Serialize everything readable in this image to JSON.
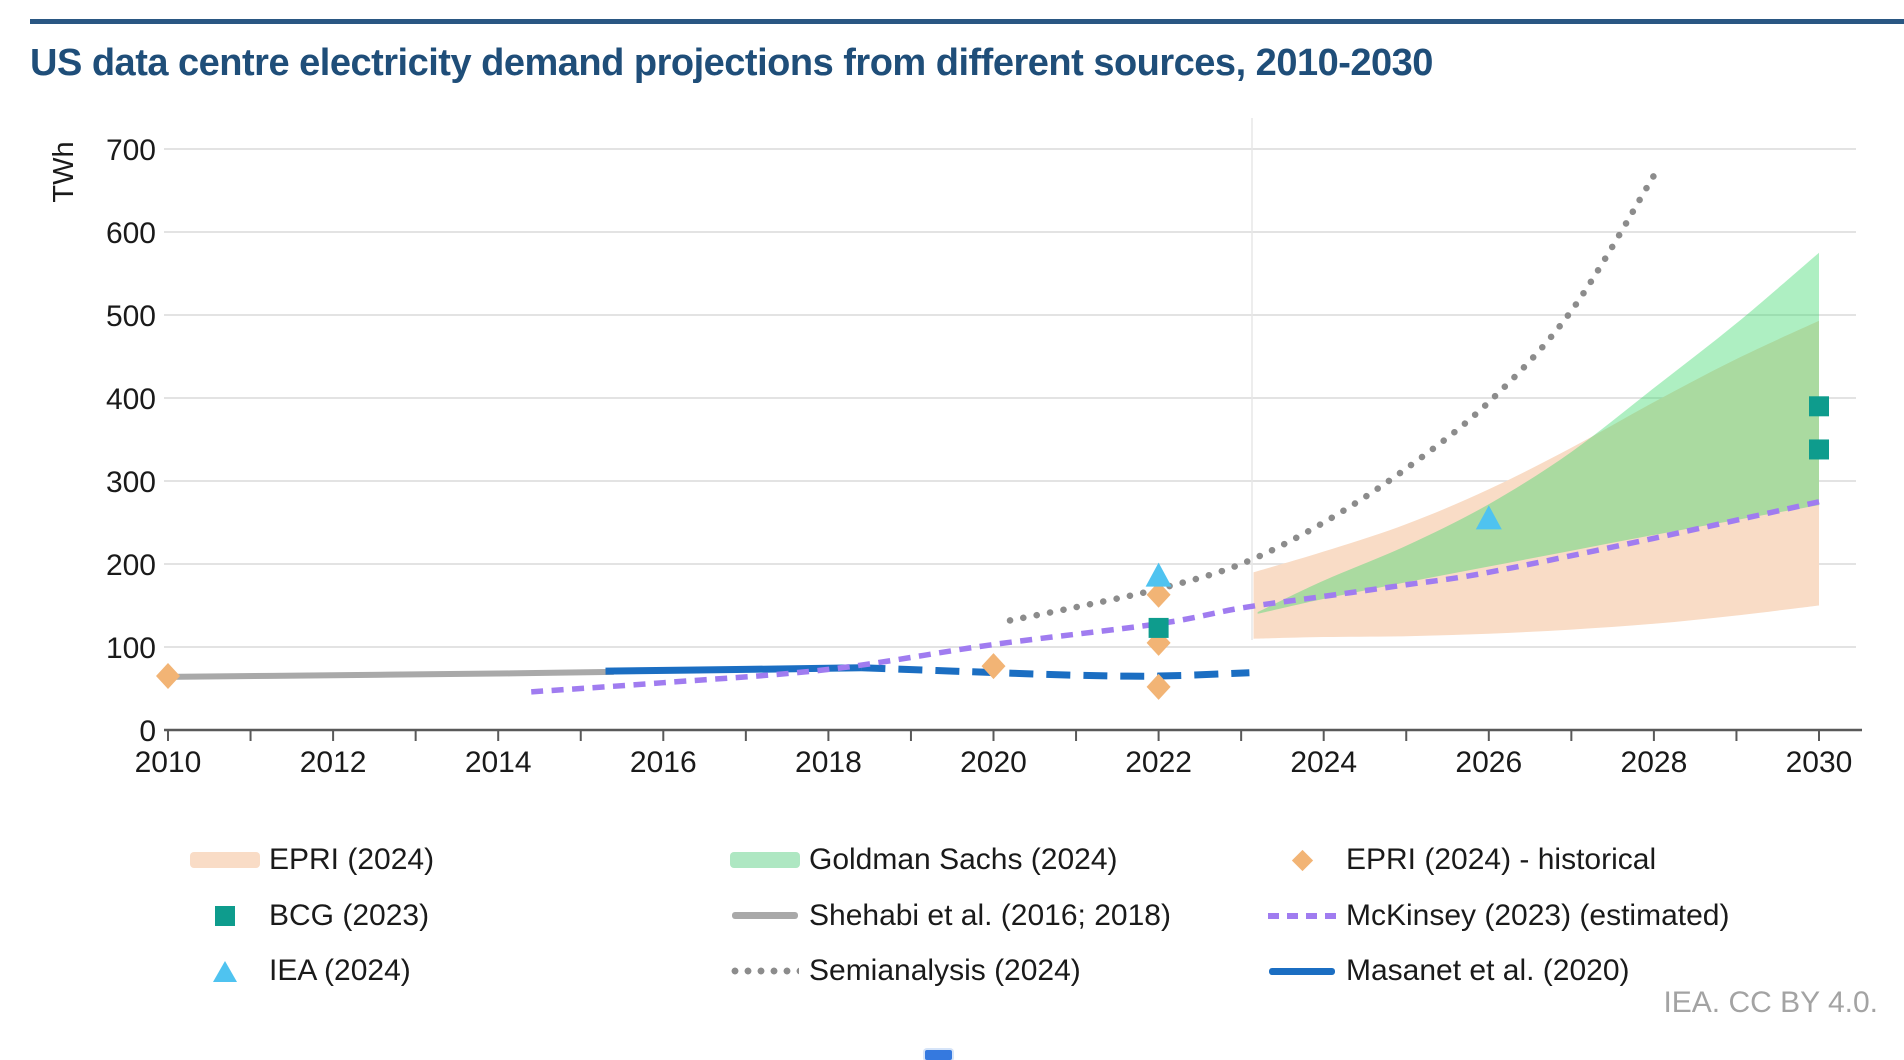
{
  "header": {
    "title": "US data centre electricity demand projections from different sources, 2010-2030",
    "title_color": "#1F4E79",
    "rule_color": "#2A5783"
  },
  "footer": {
    "credit": "IEA. CC BY 4.0."
  },
  "legend": {
    "columns": [
      {
        "items": [
          {
            "label": "EPRI (2024)",
            "swatch": "band",
            "color": "#F9DCC6"
          },
          {
            "label": "BCG (2023)",
            "swatch": "square",
            "color": "#0E9C8D"
          },
          {
            "label": "IEA (2024)",
            "swatch": "triangle",
            "color": "#4FC3F0"
          }
        ]
      },
      {
        "items": [
          {
            "label": "Goldman Sachs (2024)",
            "swatch": "band",
            "color": "#AEE7C2"
          },
          {
            "label": "Shehabi et al. (2016; 2018)",
            "swatch": "line",
            "color": "#A9A9A9"
          },
          {
            "label": "Semianalysis (2024)",
            "swatch": "dotted",
            "color": "#8C8C8C"
          }
        ]
      },
      {
        "items": [
          {
            "label": "EPRI (2024) - historical",
            "swatch": "diamond",
            "color": "#F2B475"
          },
          {
            "label": "McKinsey (2023) (estimated)",
            "swatch": "dashed",
            "color": "#A07CF0"
          },
          {
            "label": "Masanet et al. (2020)",
            "swatch": "solid-line",
            "color": "#1B6EC2"
          }
        ]
      }
    ]
  },
  "chart_data": {
    "type": "line",
    "title": "US data centre electricity demand projections from different sources, 2010-2030",
    "xlabel": "",
    "ylabel": "TWh",
    "ylim": [
      0,
      700
    ],
    "xlim": [
      2010,
      2030.5
    ],
    "grid": "horizontal",
    "legend_position": "bottom",
    "y_ticks": [
      0,
      100,
      200,
      300,
      400,
      500,
      600,
      700
    ],
    "x_ticks": [
      2010,
      2012,
      2014,
      2016,
      2018,
      2020,
      2022,
      2024,
      2026,
      2028,
      2030
    ],
    "axis_color": "#595959",
    "grid_color": "#DADADA",
    "series": [
      {
        "name": "EPRI (2024)",
        "type": "band",
        "color": "#F9DCC6",
        "points_year_low_high": [
          [
            2023.15,
            110,
            190
          ],
          [
            2024,
            112,
            215
          ],
          [
            2025,
            113,
            248
          ],
          [
            2026,
            116,
            290
          ],
          [
            2027,
            121,
            340
          ],
          [
            2028,
            128,
            395
          ],
          [
            2029,
            138,
            447
          ],
          [
            2030,
            150,
            493
          ]
        ]
      },
      {
        "name": "Goldman Sachs (2024)",
        "type": "band",
        "color": "rgba(52,215,102,0.4)",
        "points_year_low_high": [
          [
            2023.2,
            140,
            142
          ],
          [
            2024,
            158,
            180
          ],
          [
            2025,
            178,
            222
          ],
          [
            2026,
            197,
            272
          ],
          [
            2027,
            216,
            335
          ],
          [
            2028,
            235,
            412
          ],
          [
            2029,
            253,
            490
          ],
          [
            2030,
            271,
            575
          ]
        ]
      },
      {
        "name": "Semianalysis (2024)",
        "type": "line",
        "style": "dotted",
        "color": "#8C8C8C",
        "width": 6.5,
        "points": [
          [
            2020.2,
            132
          ],
          [
            2021,
            148
          ],
          [
            2022,
            170
          ],
          [
            2023,
            200
          ],
          [
            2024,
            250
          ],
          [
            2025,
            315
          ],
          [
            2026,
            395
          ],
          [
            2027,
            505
          ],
          [
            2028,
            668
          ]
        ]
      },
      {
        "name": "Shehabi et al. (2016; 2018)",
        "type": "line",
        "style": "solid",
        "color": "#A9A9A9",
        "width": 6,
        "points": [
          [
            2010,
            64
          ],
          [
            2012,
            66
          ],
          [
            2014,
            68
          ],
          [
            2015.4,
            70
          ]
        ]
      },
      {
        "name": "Masanet et al. (2020)",
        "type": "line",
        "style": "solid",
        "color": "#1B6EC2",
        "width": 7,
        "points": [
          [
            2015.3,
            71
          ],
          [
            2017,
            73
          ],
          [
            2018.4,
            75
          ]
        ]
      },
      {
        "name": "Masanet et al. (2020) - projection",
        "type": "line",
        "style": "dashed",
        "dash": "24 13",
        "color": "#1B6EC2",
        "width": 7,
        "points": [
          [
            2018.4,
            75
          ],
          [
            2019.5,
            71
          ],
          [
            2021,
            66
          ],
          [
            2022,
            65
          ],
          [
            2023.1,
            69
          ]
        ]
      },
      {
        "name": "McKinsey (2023) (estimated)",
        "type": "line",
        "style": "dashed",
        "dash": "12 8.5",
        "color": "#A07CF0",
        "width": 5.5,
        "points": [
          [
            2014.4,
            46
          ],
          [
            2016,
            57
          ],
          [
            2018,
            73
          ],
          [
            2020,
            103
          ],
          [
            2022,
            128
          ],
          [
            2023,
            147
          ],
          [
            2024,
            161
          ],
          [
            2025,
            175
          ],
          [
            2026,
            190
          ],
          [
            2028,
            231
          ],
          [
            2030,
            275
          ]
        ]
      },
      {
        "name": "EPRI (2024) - historical",
        "type": "scatter",
        "marker": "diamond",
        "color": "#F2B475",
        "points": [
          [
            2010,
            65
          ],
          [
            2020,
            77
          ],
          [
            2022,
            163
          ],
          [
            2022,
            105
          ],
          [
            2022,
            52
          ]
        ]
      },
      {
        "name": "BCG (2023)",
        "type": "scatter",
        "marker": "square",
        "color": "#0E9C8D",
        "points": [
          [
            2022,
            123
          ],
          [
            2030,
            390
          ],
          [
            2030,
            338
          ]
        ]
      },
      {
        "name": "IEA (2024)",
        "type": "scatter",
        "marker": "triangle",
        "color": "#4FC3F0",
        "points": [
          [
            2022,
            186
          ],
          [
            2026,
            255
          ]
        ]
      }
    ]
  }
}
